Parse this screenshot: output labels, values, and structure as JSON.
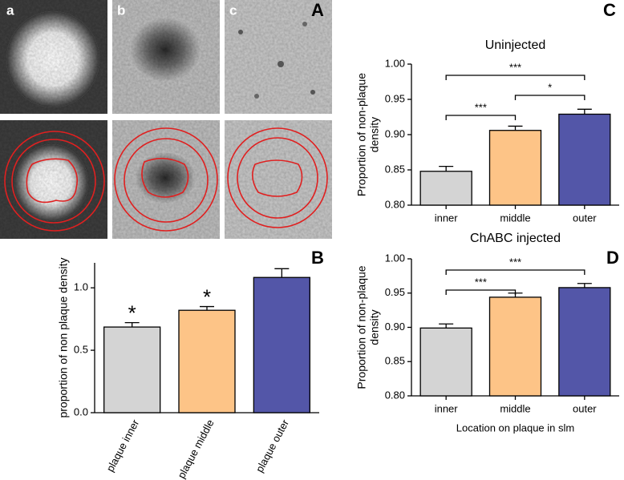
{
  "micrographs": {
    "panel": "A",
    "labels": [
      "a",
      "b",
      "c"
    ]
  },
  "chart_data": [
    {
      "type": "bar",
      "panel": "B",
      "ylabel": [
        "proportion of non plaque density"
      ],
      "categories": [
        "plaque inner",
        "plaque middle",
        "plaque outer"
      ],
      "values": [
        0.686,
        0.82,
        1.083
      ],
      "errors": [
        0.035,
        0.03,
        0.07
      ],
      "markers": [
        "*",
        "*",
        null
      ],
      "colors": [
        "#d4d4d4",
        "#fdc487",
        "#5356a8"
      ],
      "ylim": [
        0,
        1.2
      ],
      "yticks": [
        {
          "value": 0,
          "label": "0.0"
        },
        {
          "value": 0.5,
          "label": "0.5"
        },
        {
          "value": 1,
          "label": "1.0"
        }
      ]
    },
    {
      "type": "bar",
      "panel": "C",
      "title": "Uninjected",
      "ylabel": [
        "Proportion of non-plaque",
        "density"
      ],
      "categories": [
        "inner",
        "middle",
        "outer"
      ],
      "values": [
        0.848,
        0.906,
        0.929
      ],
      "errors": [
        0.007,
        0.006,
        0.007
      ],
      "colors": [
        "#d4d4d4",
        "#fdc487",
        "#5356a8"
      ],
      "significance": [
        {
          "label": "***",
          "pair": [
            0,
            2
          ]
        },
        {
          "label": "*",
          "pair": [
            1,
            2
          ]
        },
        {
          "label": "***",
          "pair": [
            0,
            1
          ]
        }
      ],
      "ylim": [
        0.8,
        1.0
      ],
      "yticks": [
        {
          "value": 0.8,
          "label": "0.80"
        },
        {
          "value": 0.85,
          "label": "0.85"
        },
        {
          "value": 0.9,
          "label": "0.90"
        },
        {
          "value": 0.95,
          "label": "0.95"
        },
        {
          "value": 1,
          "label": "1.00"
        }
      ]
    },
    {
      "type": "bar",
      "panel": "D",
      "title": "ChABC injected",
      "ylabel": [
        "Proportion of non-plaque",
        "density"
      ],
      "xlabel": "Location on plaque in slm",
      "categories": [
        "inner",
        "middle",
        "outer"
      ],
      "values": [
        0.899,
        0.944,
        0.958
      ],
      "errors": [
        0.006,
        0.006,
        0.006
      ],
      "colors": [
        "#d4d4d4",
        "#fdc487",
        "#5356a8"
      ],
      "significance": [
        {
          "label": "***",
          "pair": [
            0,
            2
          ]
        },
        {
          "label": "***",
          "pair": [
            0,
            1
          ]
        }
      ],
      "ylim": [
        0.8,
        1.0
      ],
      "yticks": [
        {
          "value": 0.8,
          "label": "0.80"
        },
        {
          "value": 0.85,
          "label": "0.85"
        },
        {
          "value": 0.9,
          "label": "0.90"
        },
        {
          "value": 0.95,
          "label": "0.95"
        },
        {
          "value": 1,
          "label": "1.00"
        }
      ]
    }
  ]
}
